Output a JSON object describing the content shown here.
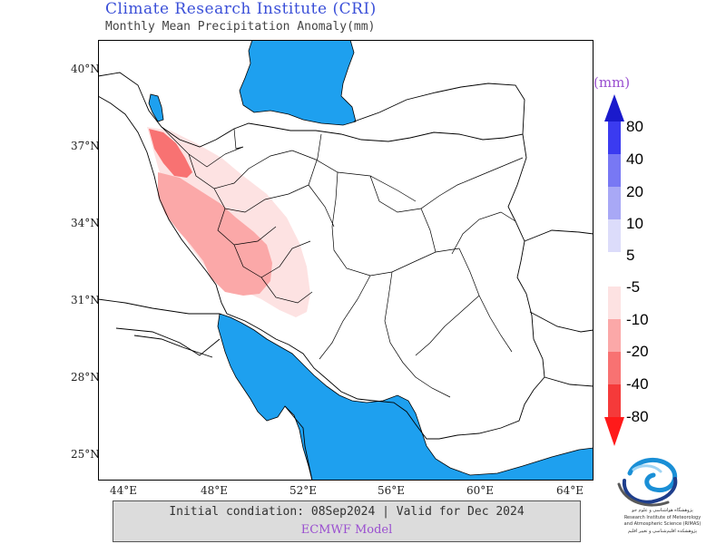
{
  "header": {
    "title": "Climate Research Institute (CRI)",
    "subtitle": "Monthly Mean Precipitation Anomaly(mm)"
  },
  "map": {
    "lat_labels": [
      "40°N",
      "37°N",
      "34°N",
      "31°N",
      "28°N",
      "25°N"
    ],
    "lon_labels": [
      "44°E",
      "48°E",
      "52°E",
      "56°E",
      "60°E",
      "64°E"
    ],
    "water_color": "#1ea0ef",
    "land_color": "#ffffff",
    "border_color": "#000000"
  },
  "legend": {
    "unit": "(mm)",
    "positive": {
      "labels": [
        "80",
        "40",
        "20",
        "10",
        "5"
      ],
      "colors": [
        "#1a1acc",
        "#3b3bf0",
        "#7878f4",
        "#a8a8f6",
        "#dcdcfa"
      ]
    },
    "negative": {
      "labels": [
        "-5",
        "-10",
        "-20",
        "-40",
        "-80"
      ],
      "colors": [
        "#fde2e2",
        "#fba8a8",
        "#f87272",
        "#f53a3a",
        "#ff1a1a"
      ]
    }
  },
  "footer": {
    "line1": "Initial condiation: 08Sep2024 | Valid for Dec 2024",
    "line2": "ECMWF Model"
  },
  "logo": {
    "lines": [
      "پژوهشگاه هواشناسی و علوم جو",
      "Research Institute of Meteorology",
      "and Atmospheric Science (RIMAS)",
      "پژوهشکده اقلیم‌شناسی و تغییر اقلیم"
    ]
  }
}
